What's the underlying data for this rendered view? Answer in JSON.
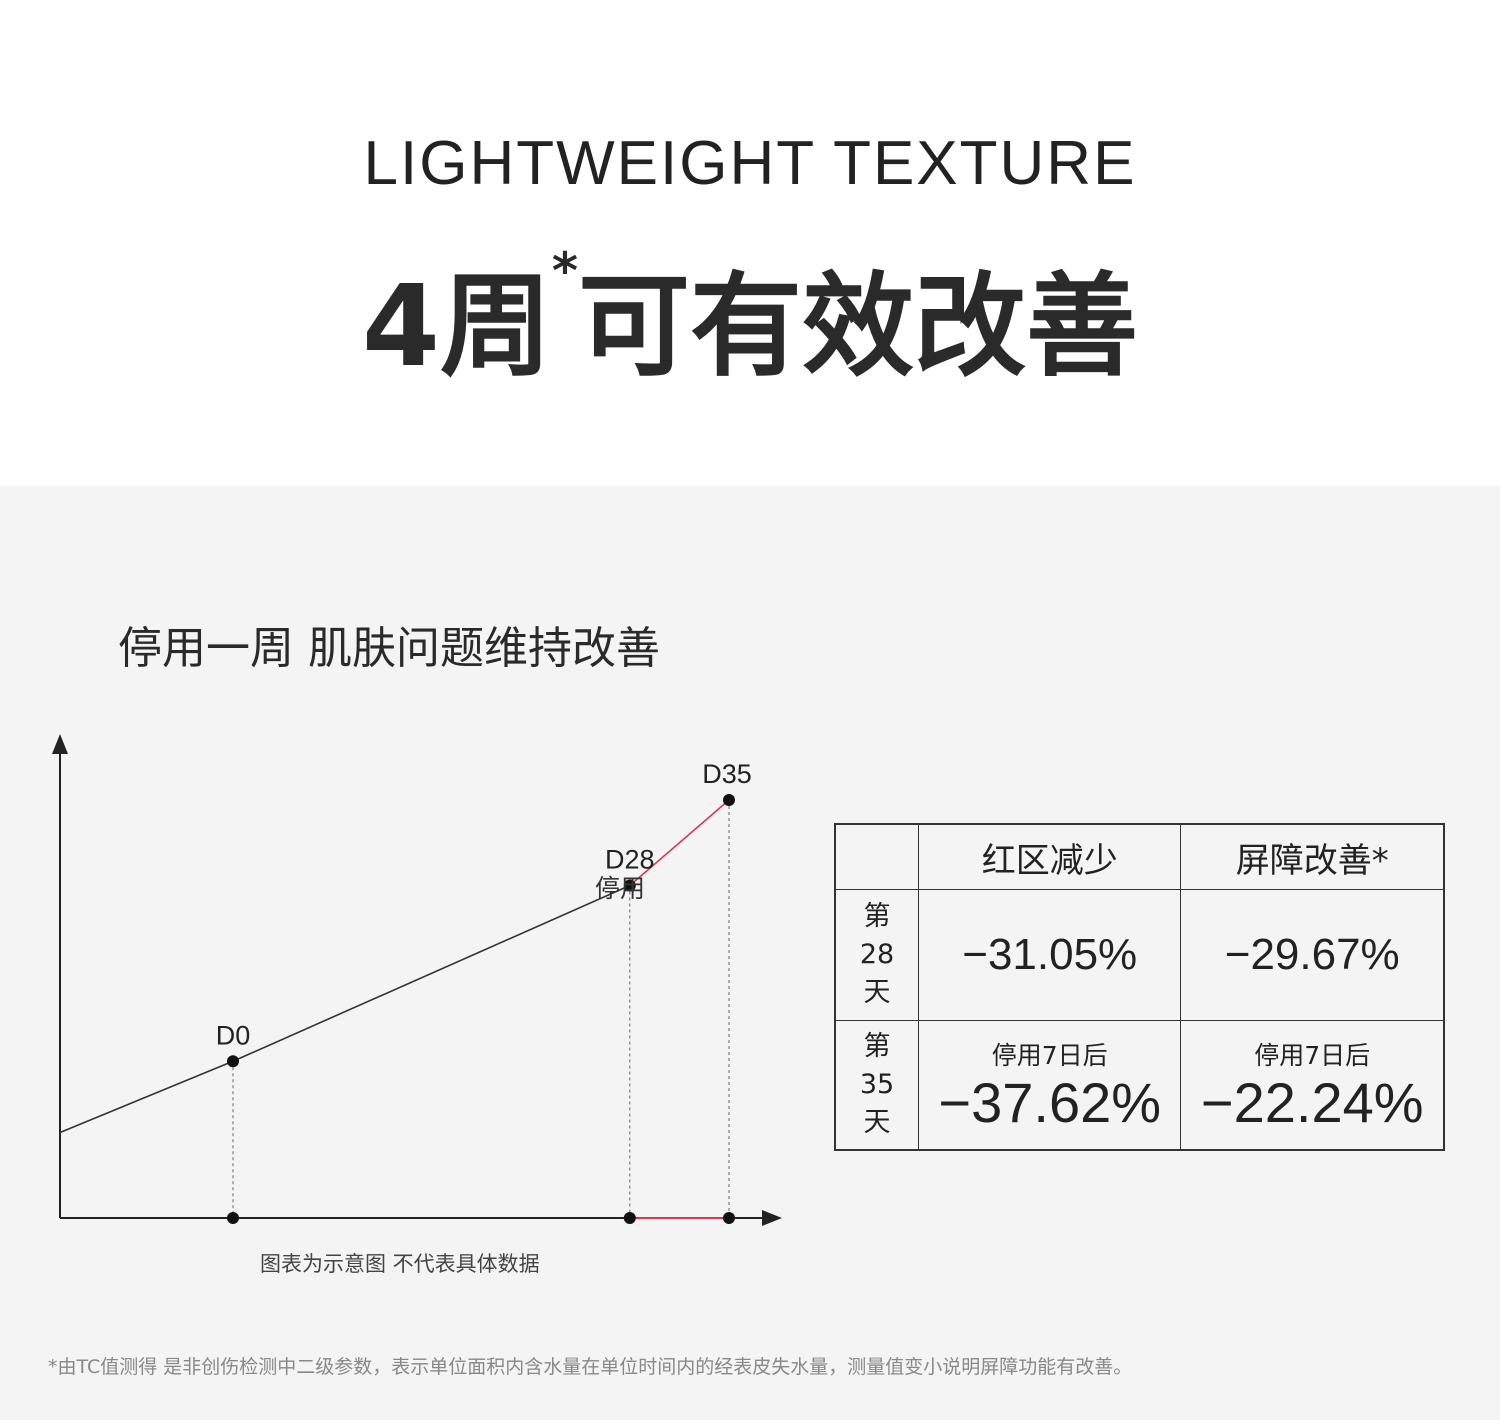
{
  "header": {
    "english_title": "LIGHTWEIGHT TEXTURE",
    "headline_pre": "4周",
    "headline_mark": "*",
    "headline_post": "可有效改善"
  },
  "section": {
    "subtitle": "停用一周 肌肤问题维持改善",
    "caption": "图表为示意图 不代表具体数据",
    "footnote": "*由TC值测得 是非创伤检测中二级参数，表示单位面积内含水量在单位时间内的经表皮失水量，测量值变小说明屏障功能有改善。"
  },
  "chart_data": {
    "type": "line",
    "title": "",
    "xlabel": "",
    "ylabel": "",
    "grid": false,
    "schematic": true,
    "points": [
      {
        "label": "",
        "x": -12,
        "y": 0.18
      },
      {
        "label": "D0",
        "x": 0,
        "y": 0.33
      },
      {
        "label": "D28",
        "x": 28,
        "y": 0.7
      },
      {
        "label": "D35",
        "x": 35,
        "y": 0.88
      }
    ],
    "annotation": "停用",
    "colors": {
      "line": "#333333",
      "stop_segment": "#d9394a"
    }
  },
  "table": {
    "headers": [
      "",
      "红区减少",
      "屏障改善*"
    ],
    "rows": [
      {
        "label": [
          "第",
          "28",
          "天"
        ],
        "cells": [
          {
            "value": "−31.05%"
          },
          {
            "value": "−29.67%"
          }
        ]
      },
      {
        "label": [
          "第",
          "35",
          "天"
        ],
        "cells": [
          {
            "note": "停用7日后",
            "value": "−37.62%"
          },
          {
            "note": "停用7日后",
            "value": "−22.24%"
          }
        ]
      }
    ]
  }
}
